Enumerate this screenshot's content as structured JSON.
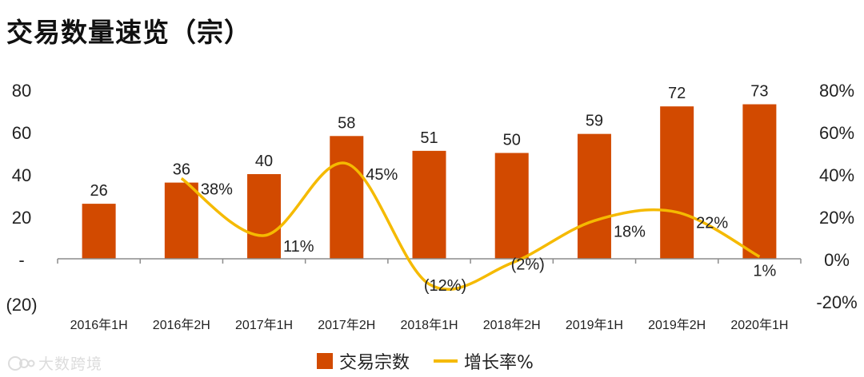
{
  "chart_data": {
    "type": "bar",
    "title": "交易数量速览（宗）",
    "categories": [
      "2016年1H",
      "2016年2H",
      "2017年1H",
      "2017年2H",
      "2018年1H",
      "2018年2H",
      "2019年1H",
      "2019年2H",
      "2020年1H"
    ],
    "series": [
      {
        "name": "交易宗数",
        "type": "bar",
        "axis": "left",
        "values": [
          26,
          36,
          40,
          58,
          51,
          50,
          59,
          72,
          73
        ],
        "labels": [
          "26",
          "36",
          "40",
          "58",
          "51",
          "50",
          "59",
          "72",
          "73"
        ]
      },
      {
        "name": "增长率%",
        "type": "line",
        "axis": "right",
        "values": [
          null,
          38,
          11,
          45,
          -12,
          -2,
          18,
          22,
          1
        ],
        "labels": [
          "",
          "38%",
          "11%",
          "45%",
          "(12%)",
          "(2%)",
          "18%",
          "22%",
          "1%"
        ]
      }
    ],
    "y_left": {
      "ylim": [
        -20,
        80
      ],
      "ticks": [
        80,
        60,
        40,
        20,
        0,
        -20
      ],
      "tick_labels": [
        "80",
        "60",
        "40",
        "20",
        "-",
        "(20)"
      ]
    },
    "y_right": {
      "ylim": [
        -20,
        80
      ],
      "ticks": [
        80,
        60,
        40,
        20,
        0,
        -20
      ],
      "tick_labels": [
        "80%",
        "60%",
        "40%",
        "20%",
        "0%",
        "-20%"
      ]
    },
    "legend": {
      "position": "bottom"
    }
  },
  "colors": {
    "bar": "#D24A00",
    "line": "#F5BA00",
    "axis": "#8c8c8c",
    "text": "#222222"
  },
  "watermark": "大数跨境"
}
